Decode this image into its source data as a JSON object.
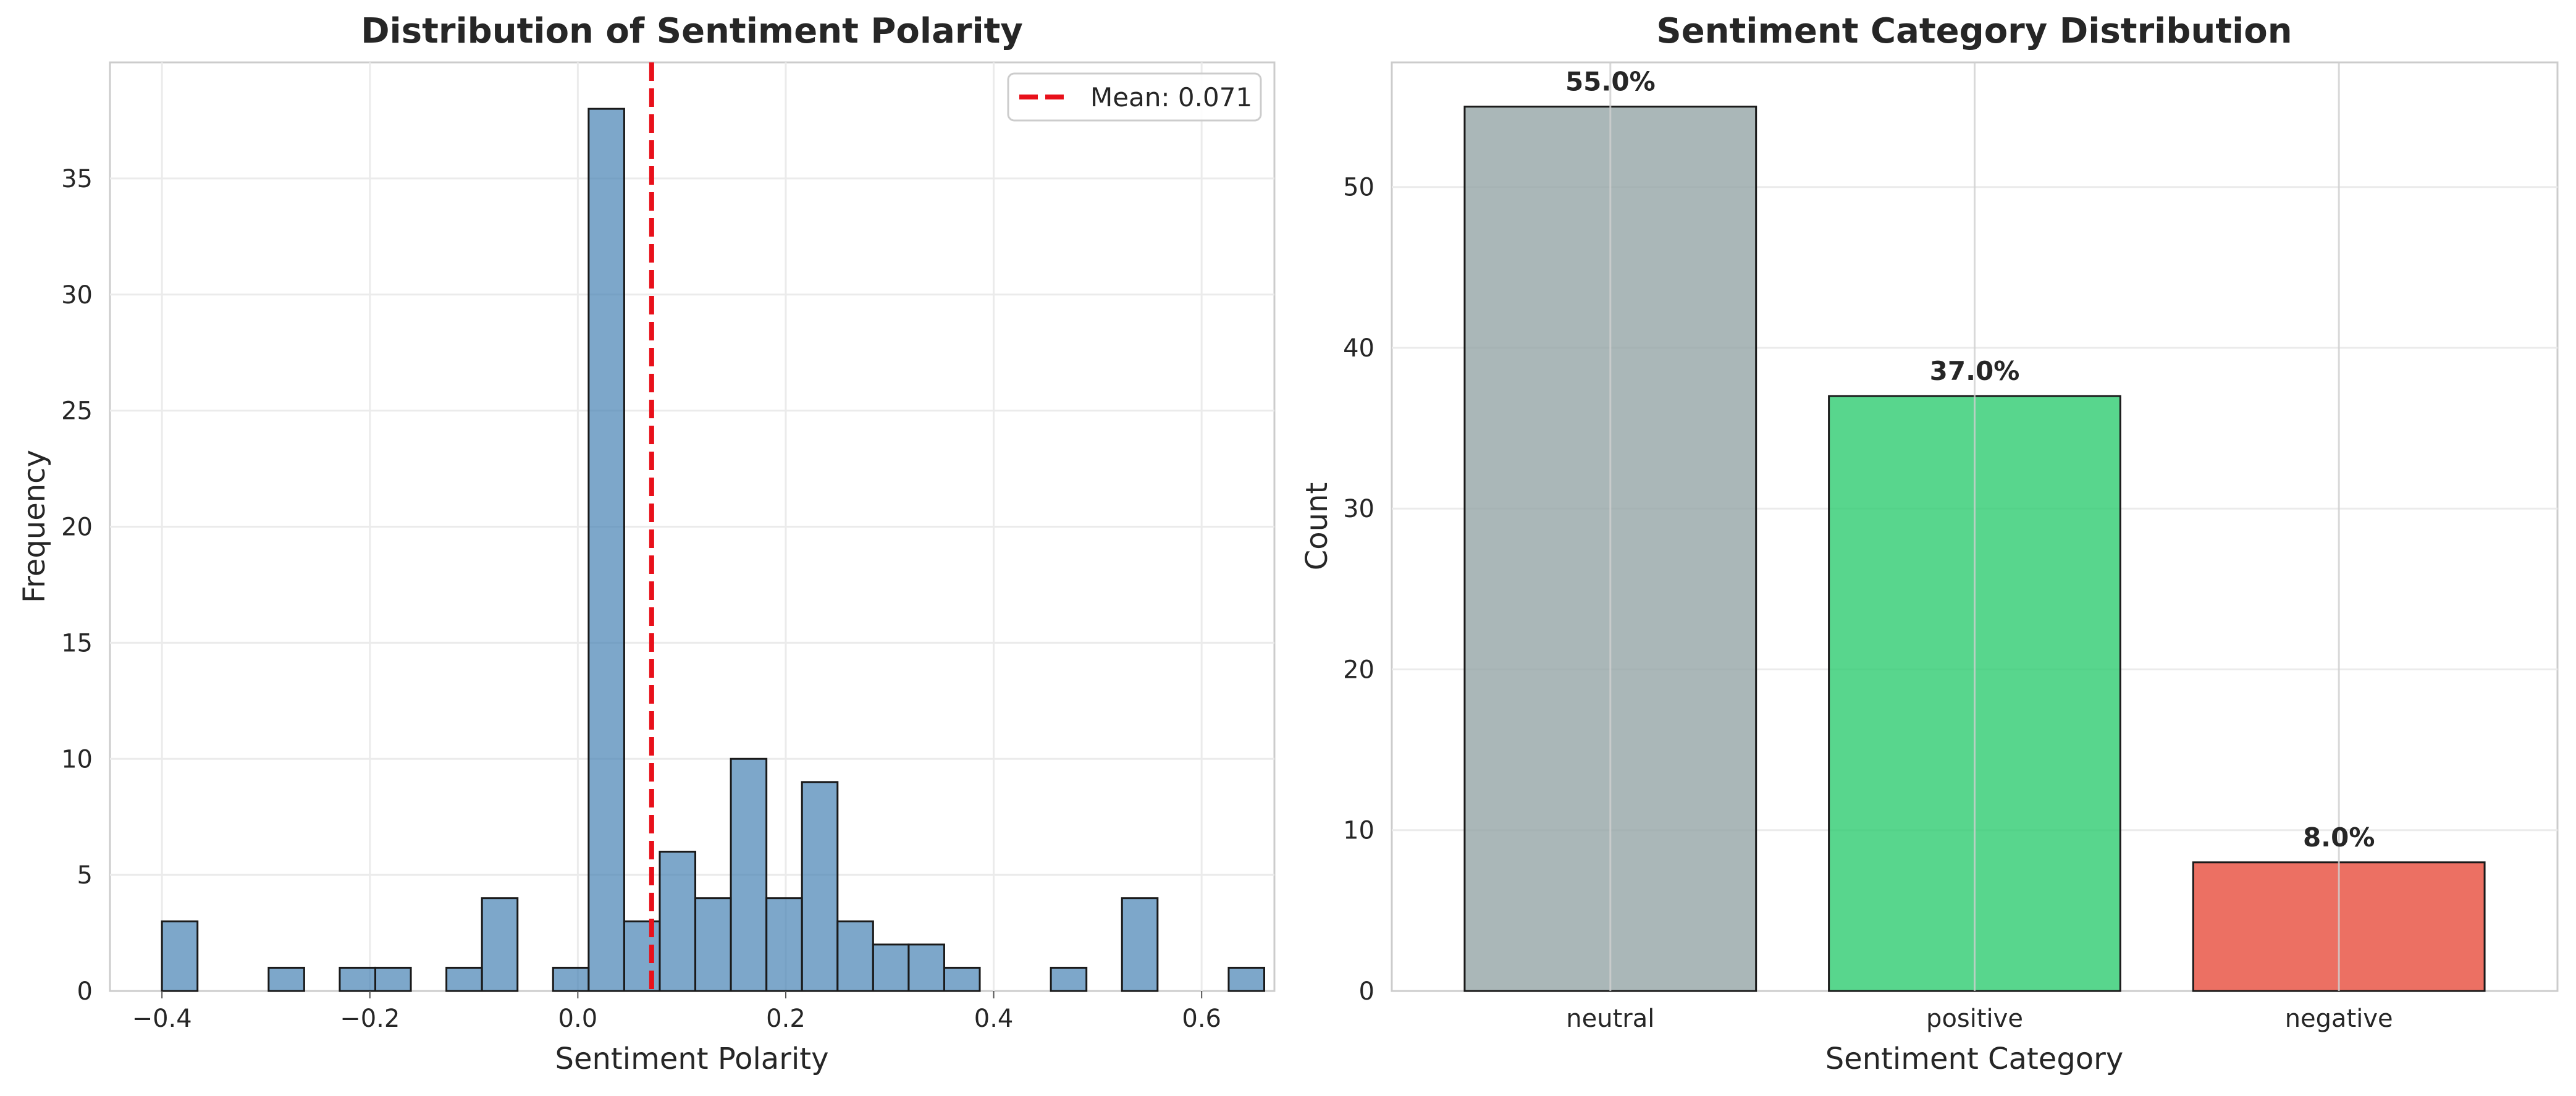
{
  "chart_data": [
    {
      "type": "histogram",
      "title": "Distribution of Sentiment Polarity",
      "xlabel": "Sentiment Polarity",
      "ylabel": "Frequency",
      "xlim": [
        -0.45,
        0.67
      ],
      "ylim": [
        0,
        40
      ],
      "grid": true,
      "xticks": [
        -0.4,
        -0.2,
        0.0,
        0.2,
        0.4,
        0.6
      ],
      "xtick_labels": [
        "−0.4",
        "−0.2",
        "0.0",
        "0.2",
        "0.4",
        "0.6"
      ],
      "yticks": [
        0,
        5,
        10,
        15,
        20,
        25,
        30,
        35
      ],
      "ytick_labels": [
        "0",
        "5",
        "10",
        "15",
        "20",
        "25",
        "30",
        "35"
      ],
      "bin_start": -0.4,
      "bin_width": 0.0342,
      "counts": [
        3,
        0,
        0,
        1,
        0,
        1,
        1,
        0,
        1,
        4,
        0,
        1,
        38,
        3,
        6,
        4,
        10,
        4,
        9,
        3,
        2,
        2,
        1,
        0,
        0,
        1,
        0,
        4,
        0,
        0,
        1
      ],
      "bar_color": "#4682b4",
      "mean_line": {
        "value": 0.071,
        "label": "Mean: 0.071",
        "color": "#e8101a"
      },
      "legend_position": "upper right"
    },
    {
      "type": "bar",
      "title": "Sentiment Category Distribution",
      "xlabel": "Sentiment Category",
      "ylabel": "Count",
      "categories": [
        "neutral",
        "positive",
        "negative"
      ],
      "values": [
        55,
        37,
        8
      ],
      "data_labels": [
        "55.0%",
        "37.0%",
        "8.0%"
      ],
      "colors": [
        "#95a5a6",
        "#2ecc71",
        "#e74c3c"
      ],
      "ylim": [
        0,
        57.75
      ],
      "yticks": [
        0,
        10,
        20,
        30,
        40,
        50
      ],
      "ytick_labels": [
        "0",
        "10",
        "20",
        "30",
        "40",
        "50"
      ],
      "grid": true
    }
  ]
}
